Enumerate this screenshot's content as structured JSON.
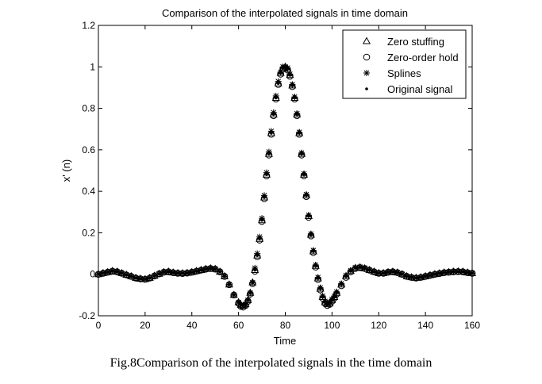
{
  "caption": "Fig.8Comparison of the interpolated signals in the time domain",
  "chart_data": {
    "type": "scatter",
    "title": "Comparison of the interpolated signals in time domain",
    "xlabel": "Time",
    "ylabel": "x' (n)",
    "xlim": [
      0,
      160
    ],
    "ylim": [
      -0.2,
      1.2
    ],
    "xticks": [
      "0",
      "20",
      "40",
      "60",
      "80",
      "100",
      "120",
      "140",
      "160"
    ],
    "yticks": [
      "-0.2",
      "0",
      "0.2",
      "0.4",
      "0.6",
      "0.8",
      "1",
      "1.2"
    ],
    "grid": false,
    "legend_position": "top-right",
    "x": [
      0,
      2,
      4,
      6,
      8,
      10,
      12,
      14,
      16,
      18,
      20,
      22,
      24,
      26,
      28,
      30,
      32,
      34,
      36,
      38,
      40,
      42,
      44,
      46,
      48,
      50,
      52,
      54,
      56,
      58,
      60,
      61,
      62,
      63,
      64,
      65,
      66,
      67,
      68,
      69,
      70,
      71,
      72,
      73,
      74,
      75,
      76,
      77,
      78,
      79,
      80,
      81,
      82,
      83,
      84,
      85,
      86,
      87,
      88,
      89,
      90,
      91,
      92,
      93,
      94,
      95,
      96,
      97,
      98,
      99,
      100,
      101,
      102,
      104,
      106,
      108,
      110,
      112,
      114,
      116,
      118,
      120,
      122,
      124,
      126,
      128,
      130,
      132,
      134,
      136,
      138,
      140,
      142,
      144,
      146,
      148,
      150,
      152,
      154,
      156,
      158,
      160
    ],
    "series": [
      {
        "name": "Zero stuffing",
        "marker": "triangle",
        "values": [
          0.0,
          0.005,
          0.01,
          0.015,
          0.012,
          0.005,
          -0.003,
          -0.01,
          -0.018,
          -0.022,
          -0.024,
          -0.018,
          -0.008,
          0.002,
          0.01,
          0.012,
          0.008,
          0.005,
          0.004,
          0.006,
          0.01,
          0.015,
          0.02,
          0.025,
          0.028,
          0.025,
          0.012,
          -0.01,
          -0.05,
          -0.1,
          -0.135,
          -0.148,
          -0.152,
          -0.145,
          -0.125,
          -0.09,
          -0.04,
          0.02,
          0.09,
          0.17,
          0.26,
          0.37,
          0.48,
          0.58,
          0.68,
          0.77,
          0.85,
          0.92,
          0.97,
          0.995,
          1.0,
          0.99,
          0.96,
          0.91,
          0.85,
          0.77,
          0.68,
          0.58,
          0.48,
          0.38,
          0.28,
          0.19,
          0.11,
          0.04,
          -0.02,
          -0.07,
          -0.11,
          -0.135,
          -0.145,
          -0.14,
          -0.125,
          -0.11,
          -0.09,
          -0.05,
          -0.01,
          0.015,
          0.03,
          0.033,
          0.028,
          0.02,
          0.012,
          0.005,
          0.005,
          0.01,
          0.012,
          0.008,
          0.0,
          -0.01,
          -0.015,
          -0.018,
          -0.015,
          -0.01,
          -0.005,
          0.0,
          0.004,
          0.008,
          0.01,
          0.012,
          0.013,
          0.012,
          0.008,
          0.005
        ]
      },
      {
        "name": "Zero-order hold",
        "marker": "circle",
        "values": [
          0.0,
          0.005,
          0.01,
          0.015,
          0.012,
          0.005,
          -0.003,
          -0.01,
          -0.018,
          -0.022,
          -0.024,
          -0.018,
          -0.008,
          0.002,
          0.01,
          0.012,
          0.008,
          0.005,
          0.004,
          0.006,
          0.01,
          0.015,
          0.02,
          0.025,
          0.028,
          0.025,
          0.012,
          -0.01,
          -0.05,
          -0.1,
          -0.14,
          -0.155,
          -0.158,
          -0.15,
          -0.13,
          -0.095,
          -0.045,
          0.015,
          0.085,
          0.165,
          0.255,
          0.365,
          0.475,
          0.575,
          0.675,
          0.765,
          0.845,
          0.915,
          0.965,
          0.99,
          0.995,
          0.985,
          0.955,
          0.905,
          0.845,
          0.765,
          0.675,
          0.575,
          0.475,
          0.375,
          0.275,
          0.185,
          0.105,
          0.035,
          -0.025,
          -0.075,
          -0.115,
          -0.14,
          -0.15,
          -0.145,
          -0.13,
          -0.115,
          -0.095,
          -0.055,
          -0.015,
          0.012,
          0.028,
          0.032,
          0.028,
          0.02,
          0.012,
          0.005,
          0.005,
          0.01,
          0.012,
          0.008,
          0.0,
          -0.01,
          -0.015,
          -0.018,
          -0.015,
          -0.01,
          -0.005,
          0.0,
          0.004,
          0.008,
          0.01,
          0.012,
          0.013,
          0.012,
          0.008,
          0.005
        ]
      },
      {
        "name": "Splines",
        "marker": "star",
        "values": [
          0.0,
          0.005,
          0.01,
          0.015,
          0.012,
          0.005,
          -0.003,
          -0.01,
          -0.018,
          -0.022,
          -0.024,
          -0.018,
          -0.008,
          0.002,
          0.01,
          0.012,
          0.008,
          0.005,
          0.004,
          0.006,
          0.01,
          0.015,
          0.02,
          0.025,
          0.028,
          0.025,
          0.012,
          -0.01,
          -0.05,
          -0.1,
          -0.135,
          -0.148,
          -0.152,
          -0.145,
          -0.125,
          -0.09,
          -0.04,
          0.03,
          0.1,
          0.18,
          0.27,
          0.38,
          0.49,
          0.59,
          0.69,
          0.78,
          0.86,
          0.93,
          0.975,
          1.0,
          1.0,
          0.995,
          0.965,
          0.915,
          0.855,
          0.775,
          0.685,
          0.585,
          0.485,
          0.385,
          0.285,
          0.195,
          0.115,
          0.045,
          -0.015,
          -0.065,
          -0.105,
          -0.13,
          -0.14,
          -0.135,
          -0.12,
          -0.105,
          -0.085,
          -0.045,
          -0.005,
          0.018,
          0.032,
          0.035,
          0.03,
          0.02,
          0.012,
          0.005,
          0.005,
          0.01,
          0.012,
          0.008,
          0.0,
          -0.01,
          -0.015,
          -0.018,
          -0.015,
          -0.01,
          -0.005,
          0.0,
          0.004,
          0.008,
          0.01,
          0.012,
          0.013,
          0.012,
          0.008,
          0.005
        ]
      },
      {
        "name": "Original signal",
        "marker": "dot",
        "values": [
          0.0,
          0.005,
          0.01,
          0.015,
          0.012,
          0.005,
          -0.003,
          -0.01,
          -0.018,
          -0.022,
          -0.024,
          -0.018,
          -0.008,
          0.002,
          0.01,
          0.012,
          0.008,
          0.005,
          0.004,
          0.006,
          0.01,
          0.015,
          0.02,
          0.025,
          0.028,
          0.025,
          0.012,
          -0.01,
          -0.05,
          -0.1,
          -0.135,
          -0.148,
          -0.152,
          -0.145,
          -0.125,
          -0.09,
          -0.04,
          0.02,
          0.09,
          0.17,
          0.26,
          0.37,
          0.48,
          0.58,
          0.68,
          0.77,
          0.85,
          0.92,
          0.97,
          0.995,
          1.0,
          0.99,
          0.96,
          0.91,
          0.85,
          0.77,
          0.68,
          0.58,
          0.48,
          0.38,
          0.28,
          0.19,
          0.11,
          0.04,
          -0.02,
          -0.07,
          -0.11,
          -0.135,
          -0.145,
          -0.14,
          -0.125,
          -0.11,
          -0.09,
          -0.05,
          -0.01,
          0.015,
          0.03,
          0.033,
          0.028,
          0.02,
          0.012,
          0.005,
          0.005,
          0.01,
          0.012,
          0.008,
          0.0,
          -0.01,
          -0.015,
          -0.018,
          -0.015,
          -0.01,
          -0.005,
          0.0,
          0.004,
          0.008,
          0.01,
          0.012,
          0.013,
          0.012,
          0.008,
          0.005
        ]
      }
    ]
  }
}
